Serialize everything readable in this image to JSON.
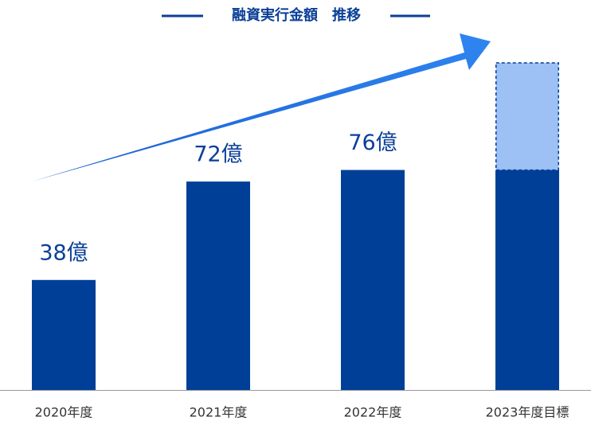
{
  "chart_data": {
    "type": "bar",
    "title": "融資実行金額　推移",
    "categories": [
      "2020年度",
      "2021年度",
      "2022年度",
      "2023年度目標"
    ],
    "stacked": true,
    "series": [
      {
        "color": "#003f98",
        "values": [
          38,
          72,
          76,
          76
        ],
        "value_labels": [
          "38億",
          "72億",
          "76億",
          null
        ]
      },
      {
        "color": "#9dc0f5",
        "values": [
          null,
          null,
          null,
          37
        ],
        "dashed": true
      }
    ]
  }
}
